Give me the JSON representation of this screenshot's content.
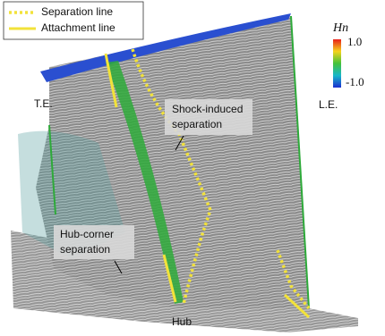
{
  "legend": {
    "items": [
      "Separation line",
      "Attachment line"
    ]
  },
  "colorbar": {
    "title": "Hn",
    "max_label": "1.0",
    "min_label": "-1.0"
  },
  "labels": {
    "trailing_edge": "T.E.",
    "leading_edge": "L.E.",
    "hub": "Hub"
  },
  "annotations": [
    {
      "lines": [
        "Shock-induced",
        "separation"
      ]
    },
    {
      "lines": [
        "Hub-corner",
        "separation"
      ]
    }
  ]
}
